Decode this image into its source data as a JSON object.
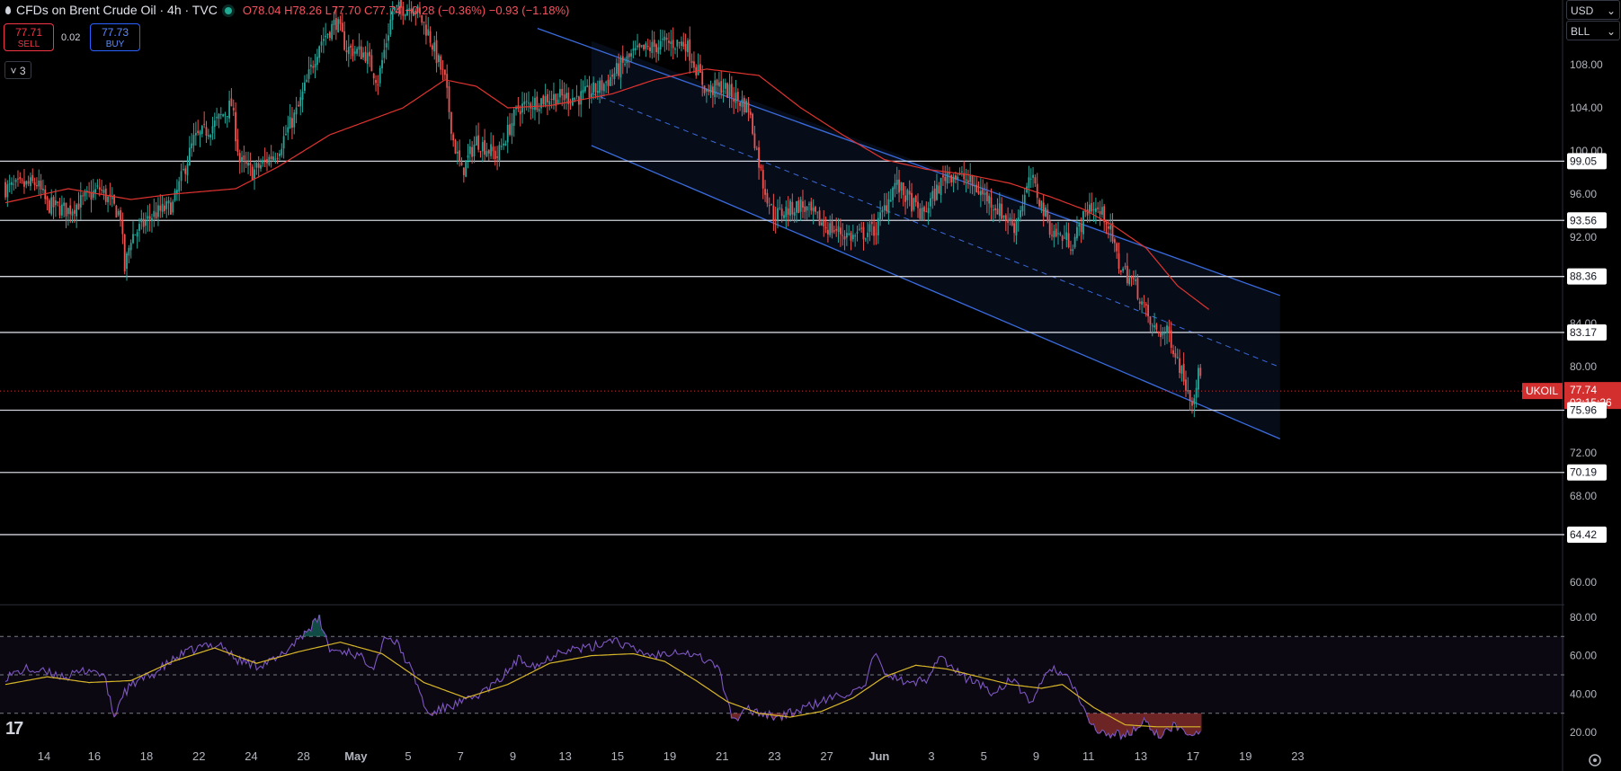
{
  "header": {
    "title": "CFDs on Brent Crude Oil · 4h · TVC",
    "ohlc": "O78.04 H78.26 L77.70 C77.74 −0.28 (−0.36%) −0.93 (−1.18%)"
  },
  "trade": {
    "sell_price": "77.71",
    "sell_label": "SELL",
    "spread": "0.02",
    "buy_price": "77.73",
    "buy_label": "BUY"
  },
  "indicators_toggle": "3",
  "currency": "USD",
  "unit": "BLL",
  "colors": {
    "up": "#26a69a",
    "down": "#ef5350",
    "ma": "#e0342f",
    "channel": "#3a6bdc",
    "rsi": "#7e57c2",
    "rsi_ma": "#d8b629",
    "price_tag": "#d32f2f"
  },
  "chart_data": [
    {
      "type": "candlestick",
      "title": "CFDs on Brent Crude Oil · 4h · TVC",
      "ylim": [
        58,
        114
      ],
      "y_ticks": [
        "60.00",
        "64.00",
        "68.00",
        "72.00",
        "76.00",
        "80.00",
        "84.00",
        "88.00",
        "92.00",
        "96.00",
        "100.00",
        "104.00",
        "108.00"
      ],
      "x_tick_labels": [
        "14",
        "16",
        "18",
        "22",
        "24",
        "28",
        "May",
        "5",
        "7",
        "9",
        "13",
        "15",
        "19",
        "21",
        "23",
        "27",
        "Jun",
        "3",
        "5",
        "9",
        "11",
        "13",
        "17",
        "19",
        "23"
      ],
      "x_tick_index": [
        6,
        30,
        55,
        80,
        105,
        130,
        155,
        180,
        205,
        230,
        255,
        280,
        305,
        330,
        355,
        380,
        405,
        430,
        455,
        480,
        505,
        530,
        555,
        580,
        605
      ],
      "last_index": 571,
      "anchors": [
        [
          0,
          96.5
        ],
        [
          15,
          97
        ],
        [
          20,
          95
        ],
        [
          30,
          94.5
        ],
        [
          45,
          96.5
        ],
        [
          55,
          94
        ],
        [
          57,
          89
        ],
        [
          60,
          92
        ],
        [
          70,
          94
        ],
        [
          80,
          95
        ],
        [
          90,
          101
        ],
        [
          100,
          102.5
        ],
        [
          108,
          104.3
        ],
        [
          112,
          99
        ],
        [
          118,
          98
        ],
        [
          130,
          100
        ],
        [
          140,
          104
        ],
        [
          150,
          110
        ],
        [
          158,
          112
        ],
        [
          163,
          109.5
        ],
        [
          172,
          109
        ],
        [
          178,
          106.5
        ],
        [
          185,
          113
        ],
        [
          195,
          113.5
        ],
        [
          202,
          111
        ],
        [
          210,
          106.5
        ],
        [
          214,
          101
        ],
        [
          218,
          98
        ],
        [
          225,
          101
        ],
        [
          235,
          99.5
        ],
        [
          245,
          104
        ],
        [
          260,
          105
        ],
        [
          275,
          105
        ],
        [
          285,
          106
        ],
        [
          300,
          109
        ],
        [
          315,
          110
        ],
        [
          325,
          110
        ],
        [
          335,
          105.5
        ],
        [
          342,
          106
        ],
        [
          355,
          104
        ],
        [
          362,
          97
        ],
        [
          367,
          94
        ],
        [
          380,
          95
        ],
        [
          392,
          93
        ],
        [
          405,
          92
        ],
        [
          416,
          92.8
        ],
        [
          425,
          97
        ],
        [
          438,
          94
        ],
        [
          450,
          98
        ],
        [
          458,
          97.5
        ],
        [
          470,
          95.5
        ],
        [
          482,
          93
        ],
        [
          490,
          97.5
        ],
        [
          500,
          92.5
        ],
        [
          510,
          91.5
        ],
        [
          518,
          95
        ],
        [
          526,
          93.8
        ],
        [
          532,
          89.5
        ],
        [
          540,
          87.5
        ],
        [
          548,
          83.5
        ],
        [
          556,
          83
        ],
        [
          563,
          79
        ],
        [
          567,
          77
        ],
        [
          570,
          79.2
        ],
        [
          578,
          78.4
        ],
        [
          586,
          77.6
        ],
        [
          590,
          77.74
        ]
      ],
      "ma_anchors": [
        [
          0,
          95.2
        ],
        [
          30,
          96.5
        ],
        [
          60,
          95.5
        ],
        [
          80,
          96
        ],
        [
          110,
          96.5
        ],
        [
          130,
          98.5
        ],
        [
          155,
          101.5
        ],
        [
          190,
          104
        ],
        [
          210,
          106.6
        ],
        [
          225,
          106
        ],
        [
          240,
          104
        ],
        [
          260,
          104.2
        ],
        [
          290,
          105.3
        ],
        [
          310,
          106.6
        ],
        [
          335,
          107.6
        ],
        [
          360,
          107
        ],
        [
          380,
          104
        ],
        [
          400,
          101.5
        ],
        [
          420,
          99.2
        ],
        [
          440,
          98.3
        ],
        [
          460,
          97.8
        ],
        [
          480,
          97
        ],
        [
          500,
          95.7
        ],
        [
          515,
          94.6
        ],
        [
          530,
          93
        ],
        [
          545,
          91
        ],
        [
          560,
          87.5
        ],
        [
          575,
          85.3
        ]
      ],
      "last_price": "77.74",
      "last_label": "UKOIL",
      "countdown": "03:15:26",
      "levels": [
        "99.05",
        "93.56",
        "88.36",
        "83.17",
        "75.96",
        "70.19",
        "64.42"
      ],
      "channel": {
        "upper_start": [
          280,
          110.2
        ],
        "upper_end": [
          609,
          86.6
        ],
        "lower_start": [
          280,
          100.5
        ],
        "lower_end": [
          609,
          73.3
        ]
      }
    },
    {
      "type": "line",
      "title": "RSI",
      "ylim": [
        14,
        86
      ],
      "y_ticks": [
        "20.00",
        "40.00",
        "60.00",
        "80.00"
      ],
      "bands": [
        70,
        50,
        30
      ],
      "anchors": [
        [
          0,
          49
        ],
        [
          10,
          53
        ],
        [
          20,
          51
        ],
        [
          30,
          49
        ],
        [
          40,
          53
        ],
        [
          47,
          50
        ],
        [
          52,
          28
        ],
        [
          56,
          40
        ],
        [
          62,
          46
        ],
        [
          70,
          50
        ],
        [
          78,
          56
        ],
        [
          85,
          61
        ],
        [
          95,
          65
        ],
        [
          103,
          66
        ],
        [
          110,
          58
        ],
        [
          120,
          55
        ],
        [
          130,
          58
        ],
        [
          140,
          69
        ],
        [
          150,
          79
        ],
        [
          155,
          63
        ],
        [
          165,
          62
        ],
        [
          176,
          55
        ],
        [
          182,
          71
        ],
        [
          188,
          65
        ],
        [
          195,
          50
        ],
        [
          202,
          29
        ],
        [
          210,
          33
        ],
        [
          222,
          37
        ],
        [
          235,
          46
        ],
        [
          245,
          58
        ],
        [
          255,
          55
        ],
        [
          265,
          63
        ],
        [
          280,
          64
        ],
        [
          290,
          69
        ],
        [
          300,
          63
        ],
        [
          310,
          60
        ],
        [
          320,
          63
        ],
        [
          330,
          60
        ],
        [
          340,
          55
        ],
        [
          348,
          26
        ],
        [
          355,
          32
        ],
        [
          370,
          28
        ],
        [
          385,
          34
        ],
        [
          400,
          40
        ],
        [
          410,
          42
        ],
        [
          415,
          60
        ],
        [
          422,
          50
        ],
        [
          432,
          45
        ],
        [
          440,
          48
        ],
        [
          446,
          60
        ],
        [
          456,
          50
        ],
        [
          466,
          45
        ],
        [
          472,
          40
        ],
        [
          480,
          48
        ],
        [
          490,
          36
        ],
        [
          500,
          54
        ],
        [
          508,
          48
        ],
        [
          516,
          30
        ],
        [
          522,
          20
        ],
        [
          528,
          19
        ],
        [
          536,
          19
        ],
        [
          545,
          26
        ],
        [
          552,
          17
        ],
        [
          558,
          24
        ],
        [
          565,
          19
        ],
        [
          570,
          21
        ]
      ],
      "ma_anchors": [
        [
          0,
          45
        ],
        [
          20,
          49
        ],
        [
          40,
          46
        ],
        [
          60,
          47
        ],
        [
          80,
          57
        ],
        [
          100,
          64
        ],
        [
          120,
          56
        ],
        [
          140,
          62
        ],
        [
          160,
          67
        ],
        [
          180,
          61
        ],
        [
          200,
          46
        ],
        [
          220,
          38
        ],
        [
          240,
          45
        ],
        [
          260,
          56
        ],
        [
          280,
          60
        ],
        [
          300,
          61
        ],
        [
          315,
          57
        ],
        [
          330,
          47
        ],
        [
          345,
          36
        ],
        [
          360,
          30
        ],
        [
          375,
          28
        ],
        [
          390,
          31
        ],
        [
          405,
          38
        ],
        [
          420,
          49
        ],
        [
          435,
          55
        ],
        [
          450,
          53
        ],
        [
          465,
          49
        ],
        [
          480,
          45
        ],
        [
          495,
          43
        ],
        [
          505,
          45
        ],
        [
          520,
          33
        ],
        [
          535,
          24
        ],
        [
          550,
          23
        ],
        [
          570,
          23
        ]
      ]
    }
  ]
}
